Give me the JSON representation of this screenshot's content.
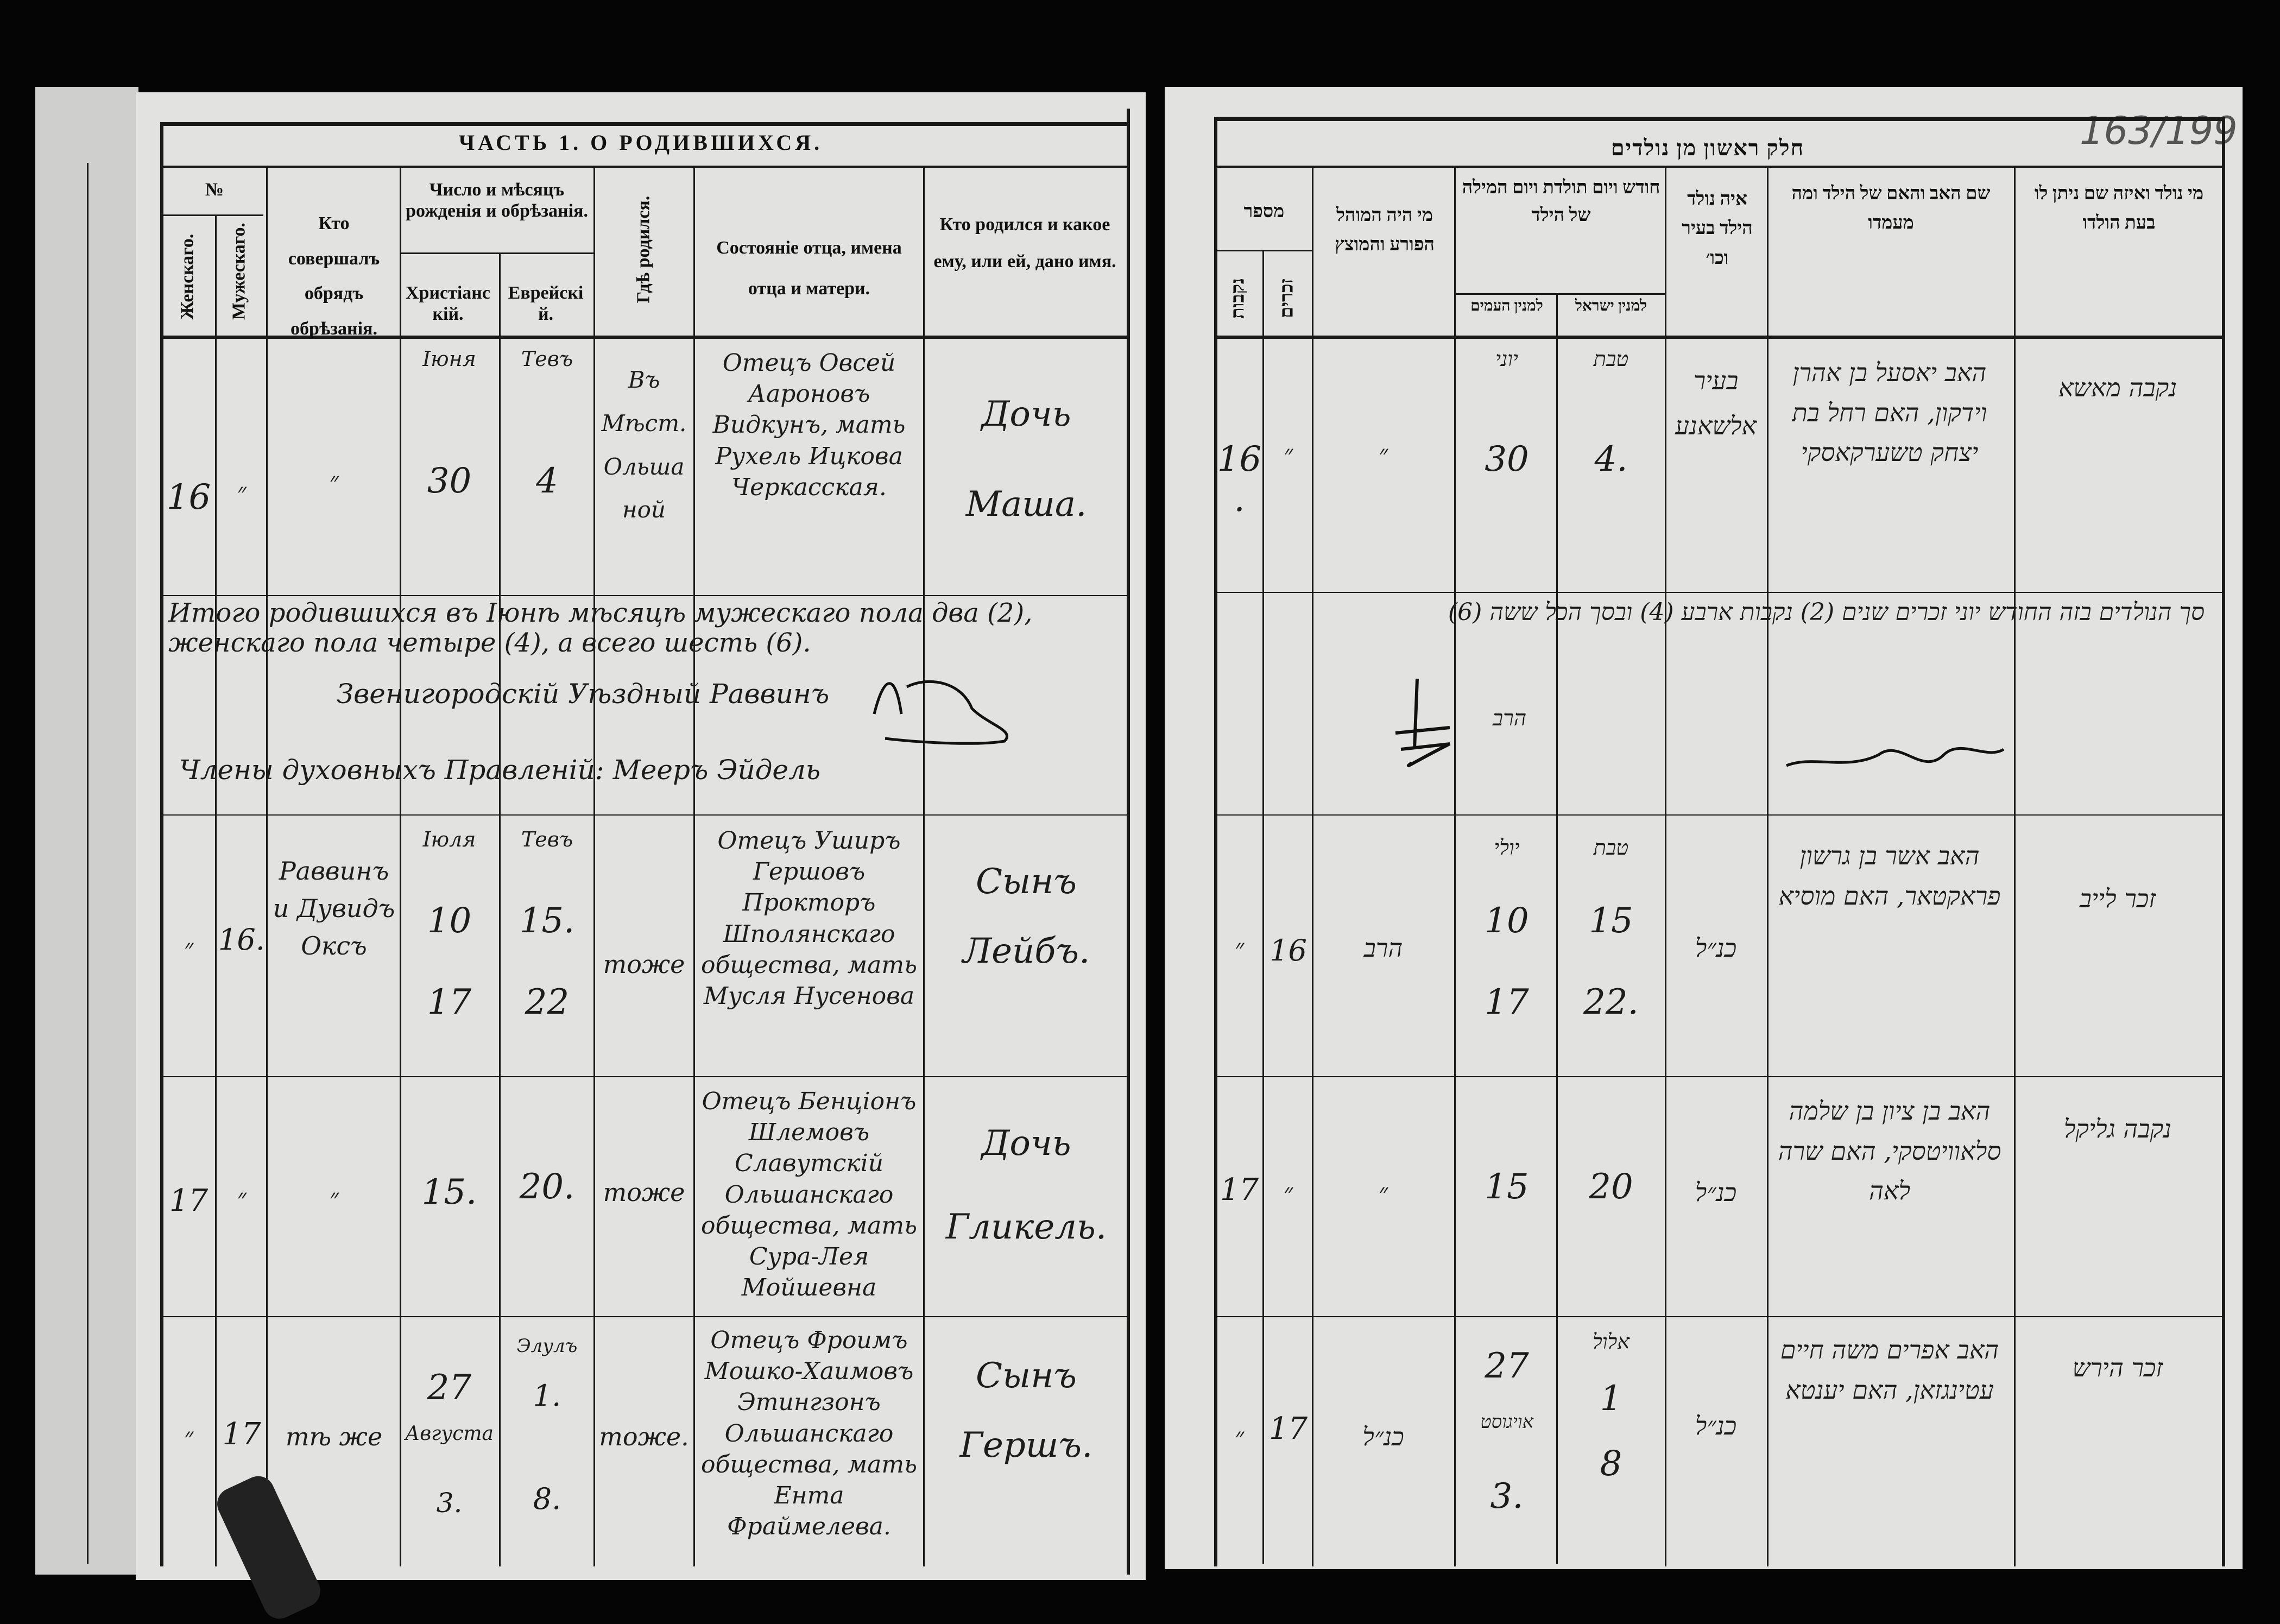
{
  "left_page": {
    "title": "ЧАСТЬ 1. О РОДИВШИХСЯ.",
    "headers": {
      "number": "№",
      "female": "Женскаго.",
      "male": "Мужескаго.",
      "circumciser": "Кто совершалъ обрядъ обрѣзанія.",
      "dates": "Число и мѣсяцъ рожденія и обрѣзанія.",
      "christian": "Христіанскій.",
      "jewish": "Еврейскій.",
      "place": "Гдѣ родился.",
      "parents": "Состояніе отца, имена отца и матери.",
      "child": "Кто родился и какое ему, или ей, дано имя."
    },
    "entries": [
      {
        "female": "16",
        "male": "״",
        "circumciser": "״",
        "chr_month": "Іюня",
        "chr_birth": "30",
        "chr_circ": "",
        "jew_month": "Тевъ",
        "jew_birth": "4",
        "jew_circ": "",
        "place": "Въ Мѣст. Ольшаной",
        "parents": "Отецъ Овсей Аароновъ Видкунъ, мать Рухель Ицкова Черкасская.",
        "child": "Дочь Маша."
      },
      {
        "female": "״",
        "male": "16.",
        "circumciser": "Раввинъ и Дувидъ Оксъ",
        "chr_month": "Іюля",
        "chr_birth": "10",
        "chr_circ": "17",
        "jew_month": "Тевъ",
        "jew_birth": "15.",
        "jew_circ": "22",
        "place": "тоже",
        "parents": "Отецъ Уширъ Гершовъ Прокторъ Шполянскаго общества, мать Мусля Нусенова",
        "child": "Сынъ Лейбъ."
      },
      {
        "female": "17",
        "male": "״",
        "circumciser": "״",
        "chr_month": "",
        "chr_birth": "15.",
        "chr_circ": "",
        "jew_month": "",
        "jew_birth": "20.",
        "jew_circ": "",
        "place": "тоже",
        "parents": "Отецъ Бенціонъ Шлемовъ Славутскій Ольшанскаго общества, мать Сура-Лея Мойшевна",
        "child": "Дочь Гликель."
      },
      {
        "female": "״",
        "male": "17",
        "circumciser": "тѣ же",
        "chr_month": "Августа",
        "chr_birth": "27",
        "chr_circ": "3.",
        "jew_month": "Элулъ",
        "jew_birth": "1.",
        "jew_circ": "8.",
        "place": "тоже.",
        "parents": "Отецъ Фроимъ Мошко-Хаимовъ Этингзонъ Ольшанскаго общества, мать Ента Фраймелева.",
        "child": "Сынъ Гершъ."
      }
    ],
    "summary": "Итого родившихся въ Іюнѣ мѣсяцѣ мужескаго пола два (2), женскаго пола четыре (4), а всего шесть (6).",
    "rabbi_line": "Звенигородскій Уѣздный Раввинъ",
    "board_line": "Члены духовныхъ Правленій: Мееръ Эйдель"
  },
  "right_page": {
    "title": "חלק ראשון מן נולדים",
    "page_number": "163/199",
    "headers": {
      "number": "מספר",
      "female": "נקבות",
      "male": "זכרים",
      "mohel": "מי היה המוהל הפורע והמוצץ",
      "dates": "חודש ויום תולדת ויום המילה של הילד",
      "col_a": "למנין העמים",
      "col_b": "למנין ישראל",
      "place": "איה נולד הילד בעיר וכו׳",
      "parents": "שם האב והאם של הילד ומה מעמדו",
      "child": "מי נולד ואיזה שם ניתן לו בעת הולדו"
    },
    "entries": [
      {
        "female": "16.",
        "male": "״",
        "mohel": "״",
        "a_month": "יוני",
        "a_birth": "30",
        "a_circ": "",
        "b_month": "טבת",
        "b_birth": "4.",
        "b_circ": "",
        "place": "בעיר אלשאנע",
        "parents": "האב יאסעל בן אהרן וידקון, האם רחל בת יצחק טשערקאסקי",
        "child": "נקבה מאשא"
      },
      {
        "female": "״",
        "male": "16",
        "mohel": "הרב",
        "a_month": "יולי",
        "a_birth": "10",
        "a_circ": "17",
        "b_month": "טבת",
        "b_birth": "15",
        "b_circ": "22.",
        "place": "כנ״ל",
        "parents": "האב אשר בן גרשון פראקטאר, האם מוסיא",
        "child": "זכר לייב"
      },
      {
        "female": "17",
        "male": "״",
        "mohel": "״",
        "a_month": "",
        "a_birth": "15",
        "a_circ": "",
        "b_month": "",
        "b_birth": "20",
        "b_circ": "",
        "place": "כנ״ל",
        "parents": "האב בן ציון בן שלמה סלאוויטסקי, האם שרה לאה",
        "child": "נקבה גליקל"
      },
      {
        "female": "״",
        "male": "17",
        "mohel": "כנ״ל",
        "a_month": "אויגוסט",
        "a_birth": "27",
        "a_circ": "3.",
        "b_month": "אלול",
        "b_birth": "1",
        "b_circ": "8",
        "place": "כנ״ל",
        "parents": "האב אפרים משה חיים עטינגזאן, האם יענטא",
        "child": "זכר הירש"
      }
    ],
    "summary": "סך הנולדים בזה החודש יוני זכרים שנים (2) נקבות ארבע (4) ובסך הכל ששה (6)",
    "rabbi_line": "הרב"
  }
}
